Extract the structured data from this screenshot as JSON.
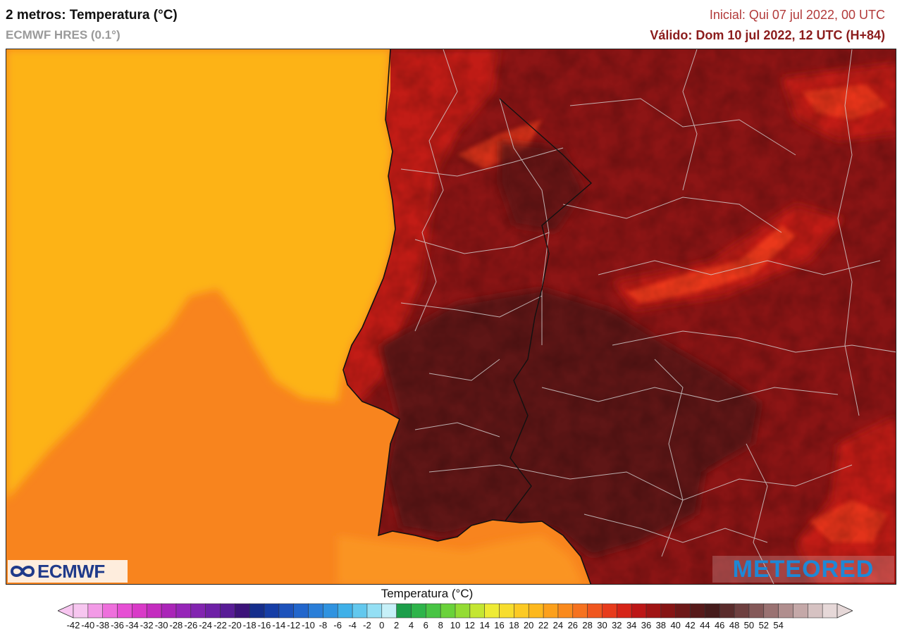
{
  "header": {
    "title": "2 metros: Temperatura (°C)",
    "subtitle": "ECMWF HRES (0.1°)",
    "initial": "Inicial: Qui 07 jul 2022, 00 UTC",
    "valid": "Válido: Dom 10 jul 2022, 12 UTC (H+84)"
  },
  "logos": {
    "left": "ECMWF",
    "right": "METEORED"
  },
  "legend": {
    "title": "Temperatura (°C)",
    "ticks": [
      "-42",
      "-40",
      "-38",
      "-36",
      "-34",
      "-32",
      "-30",
      "-28",
      "-26",
      "-24",
      "-22",
      "-20",
      "-18",
      "-16",
      "-14",
      "-12",
      "-10",
      "-8",
      "-6",
      "-4",
      "-2",
      "0",
      "2",
      "4",
      "6",
      "8",
      "10",
      "12",
      "14",
      "16",
      "18",
      "20",
      "22",
      "24",
      "26",
      "28",
      "30",
      "32",
      "34",
      "36",
      "38",
      "40",
      "42",
      "44",
      "46",
      "48",
      "50",
      "52",
      "54"
    ],
    "colors": [
      "#f7c6f0",
      "#f29ae6",
      "#ee6fdc",
      "#e64fd4",
      "#d93ac8",
      "#c42cbf",
      "#aa25b8",
      "#9625b8",
      "#8224b0",
      "#6e20a6",
      "#581c96",
      "#3c137a",
      "#152e8c",
      "#163ea6",
      "#1d52bb",
      "#2266cc",
      "#2a7ed8",
      "#2f93e0",
      "#3fb0e8",
      "#62c8ee",
      "#94dff4",
      "#c6f0f8",
      "#1c9e4a",
      "#2eb44a",
      "#48c444",
      "#6ad23a",
      "#94dc34",
      "#c4e632",
      "#eeeb35",
      "#f7dd2e",
      "#fcca24",
      "#fdb81d",
      "#fca01b",
      "#fa8a1d",
      "#f6721f",
      "#f0561e",
      "#e73b1c",
      "#d62418",
      "#bc1616",
      "#a01414",
      "#861515",
      "#6d1818",
      "#561a1a",
      "#451b1b",
      "#5a2c2c",
      "#6e4040",
      "#845858",
      "#9a7272",
      "#b08e8e",
      "#c4a8a8",
      "#d6c2c2",
      "#e6d8d8"
    ]
  },
  "map": {
    "region": "Iberian Peninsula",
    "palette": {
      "sea_far": "#f8841e",
      "sea_near": "#fdb319",
      "sea_warm": "#fa9420",
      "land_hot": "#5e1616",
      "land_warm": "#8d1515",
      "land_mild": "#c21a15",
      "mountain": "#f23d1a",
      "border": "#d6d6d6",
      "coast": "#111111"
    }
  }
}
